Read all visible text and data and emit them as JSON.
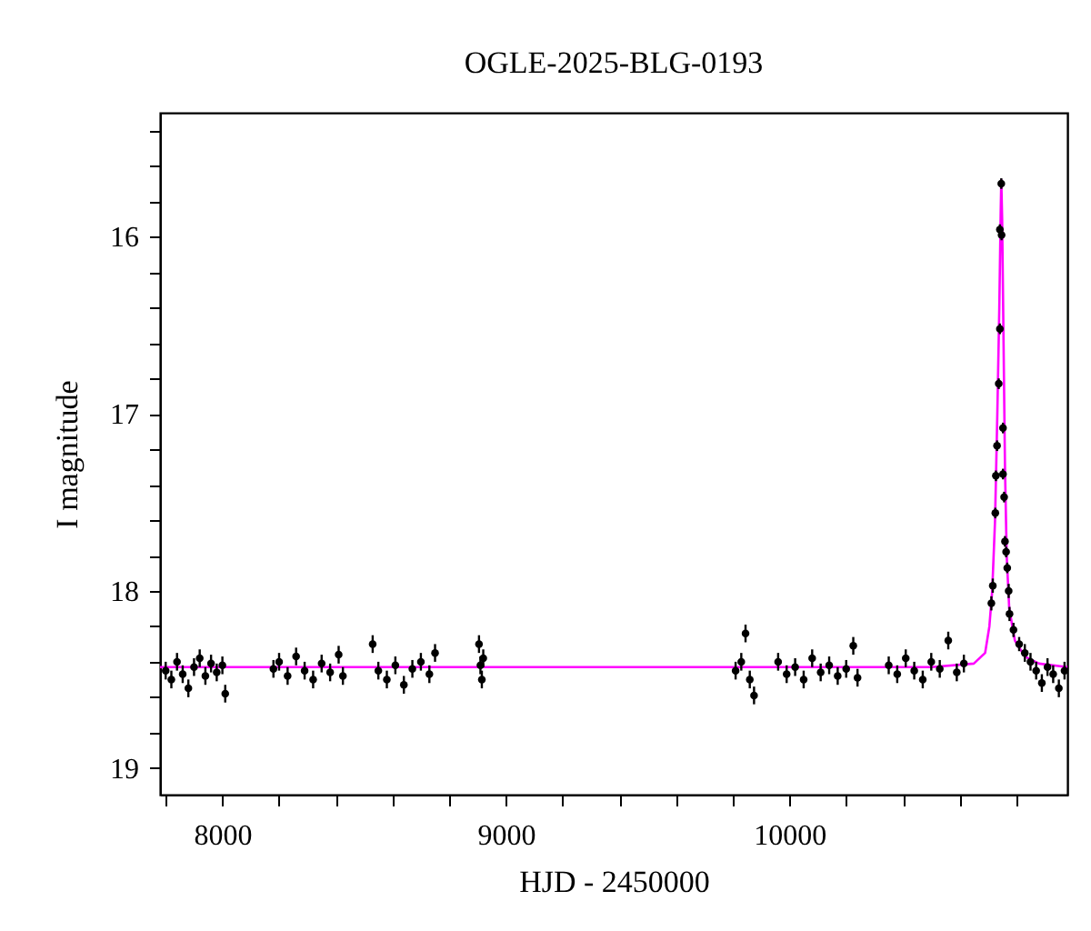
{
  "chart_data": {
    "type": "scatter",
    "title": "OGLE-2025-BLG-0193",
    "xlabel": "HJD - 2450000",
    "ylabel": "I magnitude",
    "xlim": [
      7780,
      10980
    ],
    "ylim": [
      19.15,
      15.3
    ],
    "xticks": [
      {
        "value": 7800,
        "label": null
      },
      8000,
      {
        "value": 8200,
        "label": null
      },
      {
        "value": 8400,
        "label": null
      },
      {
        "value": 8600,
        "label": null
      },
      {
        "value": 8800,
        "label": null
      },
      9000,
      {
        "value": 9200,
        "label": null
      },
      {
        "value": 9400,
        "label": null
      },
      {
        "value": 9600,
        "label": null
      },
      {
        "value": 9800,
        "label": null
      },
      10000,
      {
        "value": 10200,
        "label": null
      },
      {
        "value": 10400,
        "label": null
      },
      {
        "value": 10600,
        "label": null
      },
      {
        "value": 10800,
        "label": null
      }
    ],
    "yticks": [
      {
        "value": 15.4,
        "label": null
      },
      {
        "value": 15.6,
        "label": null
      },
      {
        "value": 15.8,
        "label": null
      },
      16,
      {
        "value": 16.2,
        "label": null
      },
      {
        "value": 16.4,
        "label": null
      },
      {
        "value": 16.6,
        "label": null
      },
      {
        "value": 16.8,
        "label": null
      },
      17,
      {
        "value": 17.2,
        "label": null
      },
      {
        "value": 17.4,
        "label": null
      },
      {
        "value": 17.6,
        "label": null
      },
      {
        "value": 17.8,
        "label": null
      },
      18,
      {
        "value": 18.2,
        "label": null
      },
      {
        "value": 18.4,
        "label": null
      },
      {
        "value": 18.6,
        "label": null
      },
      {
        "value": 18.8,
        "label": null
      },
      19
    ],
    "series": [
      {
        "type": "scatter",
        "color": "#000000",
        "marker": "circle",
        "x": [
          7800,
          7820,
          7840,
          7860,
          7880,
          7900,
          7920,
          7940,
          7960,
          7980,
          8000,
          8010,
          8180,
          8200,
          8230,
          8260,
          8290,
          8320,
          8350,
          8380,
          8410,
          8425,
          8530,
          8550,
          8580,
          8610,
          8640,
          8670,
          8700,
          8730,
          8750,
          8905,
          8910,
          8915,
          8920,
          9810,
          9830,
          9845,
          9860,
          9875,
          9960,
          9990,
          10020,
          10050,
          10080,
          10110,
          10140,
          10170,
          10200,
          10225,
          10240,
          10350,
          10380,
          10410,
          10440,
          10470,
          10500,
          10530,
          10560,
          10590,
          10615,
          10712,
          10717,
          10726,
          10728,
          10732,
          10738,
          10742,
          10742,
          10747,
          10748,
          10753,
          10753,
          10757,
          10760,
          10764,
          10768,
          10773,
          10776,
          10790,
          10810,
          10830,
          10850,
          10870,
          10890,
          10910,
          10930,
          10950,
          10970
        ],
        "values": [
          18.45,
          18.5,
          18.4,
          18.47,
          18.55,
          18.43,
          18.38,
          18.48,
          18.41,
          18.46,
          18.42,
          18.58,
          18.44,
          18.4,
          18.48,
          18.37,
          18.45,
          18.5,
          18.41,
          18.46,
          18.36,
          18.48,
          18.3,
          18.45,
          18.5,
          18.42,
          18.53,
          18.44,
          18.4,
          18.47,
          18.35,
          18.3,
          18.42,
          18.5,
          18.38,
          18.45,
          18.4,
          18.24,
          18.5,
          18.59,
          18.4,
          18.47,
          18.43,
          18.5,
          18.38,
          18.46,
          18.42,
          18.48,
          18.44,
          18.31,
          18.49,
          18.42,
          18.47,
          18.38,
          18.45,
          18.5,
          18.4,
          18.44,
          18.28,
          18.46,
          18.41,
          18.07,
          17.97,
          17.56,
          17.35,
          17.18,
          16.83,
          16.52,
          15.96,
          15.7,
          15.99,
          17.08,
          17.34,
          17.47,
          17.72,
          17.78,
          17.87,
          18.0,
          18.13,
          18.22,
          18.3,
          18.35,
          18.4,
          18.45,
          18.52,
          18.43,
          18.47,
          18.55,
          18.45
        ],
        "errors": [
          0.05,
          0.05,
          0.05,
          0.05,
          0.05,
          0.05,
          0.05,
          0.05,
          0.05,
          0.05,
          0.05,
          0.05,
          0.05,
          0.05,
          0.05,
          0.05,
          0.05,
          0.05,
          0.05,
          0.05,
          0.05,
          0.05,
          0.05,
          0.05,
          0.05,
          0.05,
          0.05,
          0.05,
          0.05,
          0.05,
          0.05,
          0.05,
          0.05,
          0.05,
          0.05,
          0.05,
          0.05,
          0.05,
          0.05,
          0.05,
          0.05,
          0.05,
          0.05,
          0.05,
          0.05,
          0.05,
          0.05,
          0.05,
          0.05,
          0.05,
          0.05,
          0.05,
          0.05,
          0.05,
          0.05,
          0.05,
          0.05,
          0.05,
          0.05,
          0.05,
          0.05,
          0.04,
          0.04,
          0.03,
          0.03,
          0.03,
          0.03,
          0.03,
          0.03,
          0.03,
          0.03,
          0.03,
          0.03,
          0.03,
          0.03,
          0.03,
          0.03,
          0.04,
          0.04,
          0.04,
          0.04,
          0.05,
          0.05,
          0.05,
          0.05,
          0.05,
          0.05,
          0.05,
          0.05
        ]
      },
      {
        "type": "line",
        "color": "#ff00ff",
        "x": [
          7780,
          10500,
          10650,
          10690,
          10705,
          10715,
          10725,
          10733,
          10740,
          10745,
          10747,
          10750,
          10755,
          10760,
          10766,
          10775,
          10795,
          10830,
          10880,
          10980
        ],
        "values": [
          18.43,
          18.43,
          18.41,
          18.35,
          18.2,
          18.0,
          17.6,
          17.0,
          16.4,
          15.85,
          15.68,
          15.9,
          16.6,
          17.3,
          17.8,
          18.1,
          18.28,
          18.37,
          18.41,
          18.43
        ]
      }
    ]
  }
}
